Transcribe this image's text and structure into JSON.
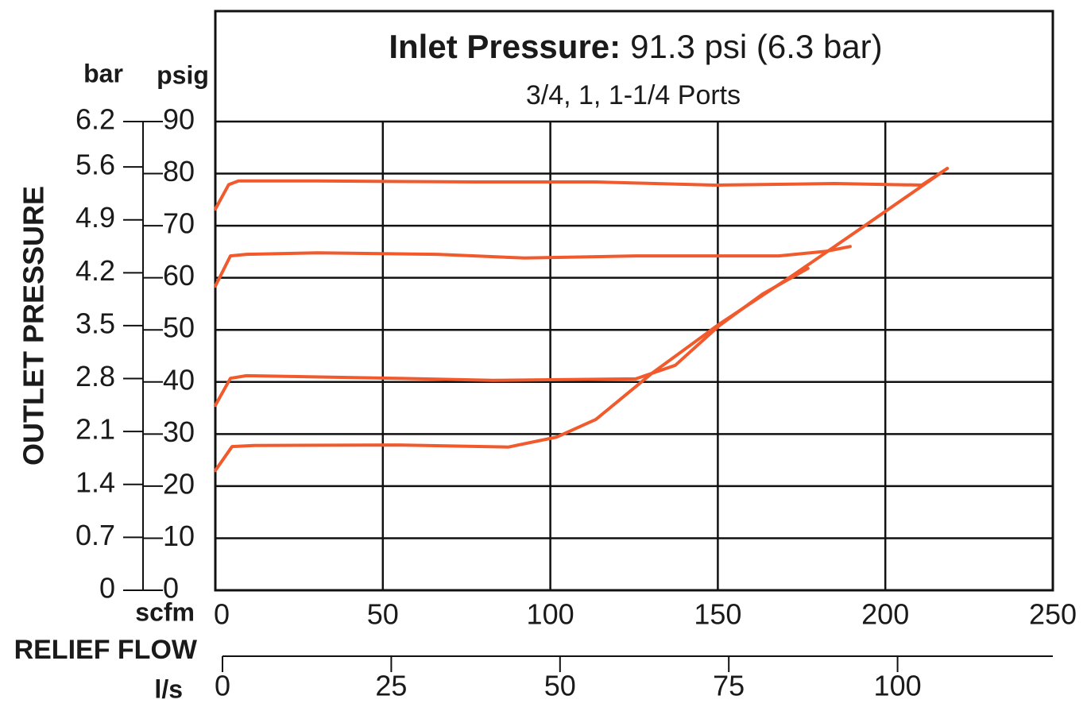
{
  "chart_data": {
    "type": "line",
    "title": "Inlet Pressure:",
    "title_value": "91.3 psi (6.3 bar)",
    "subtitle": "3/4, 1, 1-1/4 Ports",
    "ylabel": "OUTLET PRESSURE",
    "y_unit": "psig",
    "y2_unit": "bar",
    "xlabel": "RELIEF FLOW",
    "x_unit": "scfm",
    "x2_unit": "l/s",
    "xlim": [
      0,
      250
    ],
    "xticks": [
      0,
      50,
      100,
      150,
      200,
      250
    ],
    "x2lim": [
      0,
      123
    ],
    "x2ticks": [
      0,
      25,
      50,
      75,
      100
    ],
    "ylim": [
      0,
      90
    ],
    "yticks": [
      0,
      10,
      20,
      30,
      40,
      50,
      60,
      70,
      80,
      90
    ],
    "y2lim": [
      0,
      6.2
    ],
    "y2ticks": [
      0,
      0.7,
      1.4,
      2.1,
      2.8,
      3.5,
      4.2,
      4.9,
      5.6,
      6.2
    ],
    "grid": true,
    "series": [
      {
        "color": "#f05a2c",
        "x": [
          0,
          4,
          6.9,
          30.6,
          78,
          113.6,
          149.2,
          184.8,
          210.9,
          218.5
        ],
        "values": [
          73.2,
          77.9,
          78.6,
          78.6,
          78.4,
          78.4,
          77.8,
          78.1,
          77.8,
          81
        ]
      },
      {
        "color": "#f05a2c",
        "x": [
          0,
          4.5,
          9.3,
          30.6,
          66.2,
          92.3,
          125.5,
          168.2,
          182.4,
          189.5
        ],
        "values": [
          58.4,
          64.2,
          64.5,
          64.8,
          64.5,
          63.8,
          64.2,
          64.2,
          65.1,
          66
        ]
      },
      {
        "color": "#f05a2c",
        "x": [
          0,
          4.5,
          9.3,
          54.3,
          82.8,
          125.5,
          137.3,
          150.4,
          163.4,
          176.9
        ],
        "values": [
          35.5,
          40.7,
          41.2,
          40.7,
          40.3,
          40.6,
          43.2,
          50.8,
          56.9,
          61.8
        ]
      },
      {
        "color": "#f05a2c",
        "x": [
          0,
          5,
          11.6,
          54.3,
          87.5,
          101.8,
          113.6,
          130.2,
          150.4,
          172.9,
          194.3,
          218.5
        ],
        "values": [
          23,
          27.6,
          27.8,
          27.9,
          27.5,
          29.4,
          32.8,
          41.6,
          51.1,
          60.7,
          70.2,
          81
        ]
      }
    ]
  }
}
